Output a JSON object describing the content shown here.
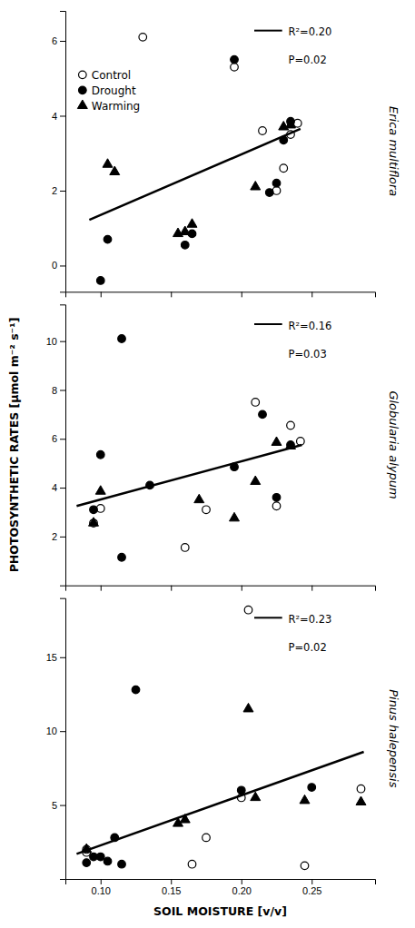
{
  "chart_data": [
    {
      "type": "scatter",
      "title": "Erica multiflora",
      "annotations": [
        "R²=0.20",
        "P=0.02"
      ],
      "xlim": [
        0.075,
        0.295
      ],
      "xticks": [
        0.1,
        0.15,
        0.2,
        0.25
      ],
      "ylim": [
        -0.7,
        6.8
      ],
      "yticks": [
        0,
        2,
        4,
        6
      ],
      "tick_labels": "y",
      "grid": false,
      "legend": "upper left",
      "series": [
        {
          "name": "Control",
          "marker": "open-circle",
          "color": "#000000",
          "x": [
            0.13,
            0.195,
            0.215,
            0.225,
            0.235,
            0.24,
            0.23
          ],
          "values": [
            6.1,
            5.3,
            3.6,
            2.0,
            3.5,
            3.8,
            2.6
          ]
        },
        {
          "name": "Drought",
          "marker": "circle",
          "color": "#000000",
          "x": [
            0.1,
            0.105,
            0.16,
            0.165,
            0.195,
            0.22,
            0.225,
            0.235,
            0.23
          ],
          "values": [
            -0.4,
            0.7,
            0.55,
            0.85,
            5.5,
            1.95,
            2.2,
            3.85,
            3.35
          ]
        },
        {
          "name": "Warming",
          "marker": "triangle",
          "color": "#000000",
          "x": [
            0.105,
            0.11,
            0.155,
            0.16,
            0.165,
            0.21,
            0.235,
            0.23
          ],
          "values": [
            2.7,
            2.5,
            0.85,
            0.9,
            1.1,
            2.1,
            3.75,
            3.7
          ]
        },
        {
          "type": "line",
          "color": "#000000",
          "x": [
            0.092,
            0.242
          ],
          "values": [
            1.22,
            3.65
          ]
        }
      ]
    },
    {
      "type": "scatter",
      "title": "Globularia alypum",
      "ylabel": "PHOTOSYNTHETIC RATES [µmol m⁻² s⁻¹]",
      "annotations": [
        "R²=0.16",
        "P=0.03"
      ],
      "xlim": [
        0.075,
        0.295
      ],
      "xticks": [
        0.1,
        0.15,
        0.2,
        0.25
      ],
      "ylim": [
        0,
        11.5
      ],
      "yticks": [
        2,
        4,
        6,
        8,
        10
      ],
      "tick_labels": "y",
      "grid": false,
      "series": [
        {
          "marker": "open-circle",
          "color": "#000000",
          "x": [
            0.095,
            0.1,
            0.16,
            0.175,
            0.21,
            0.225,
            0.235,
            0.242
          ],
          "values": [
            2.55,
            3.15,
            1.55,
            3.1,
            7.5,
            3.25,
            6.55,
            5.9
          ]
        },
        {
          "marker": "circle",
          "color": "#000000",
          "x": [
            0.095,
            0.1,
            0.115,
            0.135,
            0.115,
            0.195,
            0.215,
            0.225,
            0.235
          ],
          "values": [
            3.1,
            5.35,
            1.15,
            4.1,
            10.1,
            4.85,
            7.0,
            3.6,
            5.75
          ]
        },
        {
          "marker": "triangle",
          "color": "#000000",
          "x": [
            0.095,
            0.1,
            0.17,
            0.195,
            0.21,
            0.225,
            0.235
          ],
          "values": [
            2.55,
            3.85,
            3.5,
            2.75,
            4.25,
            5.85,
            5.7
          ]
        },
        {
          "type": "line",
          "color": "#000000",
          "x": [
            0.083,
            0.243
          ],
          "values": [
            3.25,
            5.75
          ]
        }
      ]
    },
    {
      "type": "scatter",
      "title": "Pinus halepensis",
      "xlabel": "SOIL MOISTURE [v/v]",
      "annotations": [
        "R²=0.23",
        "P=0.02"
      ],
      "xlim": [
        0.075,
        0.295
      ],
      "xticks": [
        {
          "value": 0.1,
          "label": "0.10"
        },
        0.15,
        {
          "value": 0.2,
          "label": "0.20"
        },
        0.25
      ],
      "ylim": [
        0,
        19
      ],
      "yticks": [
        5,
        10,
        15
      ],
      "grid": false,
      "series": [
        {
          "marker": "open-circle",
          "color": "#000000",
          "x": [
            0.09,
            0.165,
            0.175,
            0.2,
            0.245,
            0.285,
            0.09,
            0.205
          ],
          "values": [
            2.0,
            1.0,
            2.8,
            5.5,
            0.9,
            6.1,
            1.8,
            18.2
          ]
        },
        {
          "marker": "circle",
          "color": "#000000",
          "x": [
            0.09,
            0.095,
            0.1,
            0.105,
            0.11,
            0.115,
            0.125,
            0.2,
            0.25
          ],
          "values": [
            1.1,
            1.5,
            1.5,
            1.2,
            2.8,
            1.0,
            12.8,
            6.0,
            6.2
          ]
        },
        {
          "marker": "triangle",
          "color": "#000000",
          "x": [
            0.09,
            0.155,
            0.16,
            0.205,
            0.21,
            0.245,
            0.285
          ],
          "values": [
            2.0,
            3.75,
            4.0,
            11.5,
            5.5,
            5.3,
            5.2
          ]
        },
        {
          "type": "line",
          "color": "#000000",
          "x": [
            0.083,
            0.287
          ],
          "values": [
            1.7,
            8.6
          ]
        }
      ]
    }
  ]
}
